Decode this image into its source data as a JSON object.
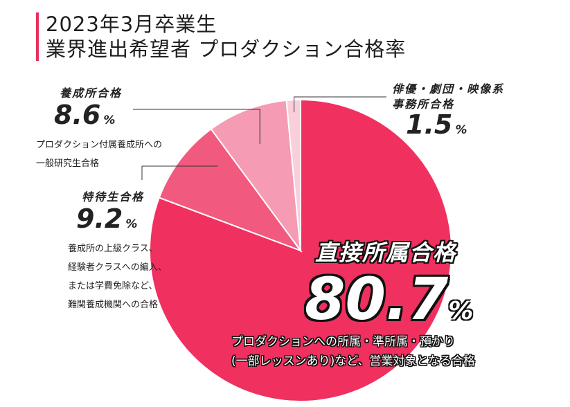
{
  "header": {
    "title_line1": "2023年3月卒業生",
    "title_line2": "業界進出希望者 プロダクション合格率",
    "accent_color": "#e8305f"
  },
  "chart_data": {
    "type": "pie",
    "slices": [
      {
        "key": "direct",
        "label": "直接所属合格",
        "value": 80.7,
        "value_text": "80.7",
        "unit": "%",
        "color": "#f0305f",
        "description": [
          "プロダクションへの所属・準所属・預かり",
          "(一部レッスンあり)など、営業対象となる合格"
        ]
      },
      {
        "key": "special",
        "label": "特待生合格",
        "value": 9.2,
        "value_text": "9.2",
        "unit": "%",
        "color": "#f2597f",
        "description": [
          "養成所の上級クラス、",
          "経験者クラスへの編入、",
          "または学費免除など、",
          "難関養成機関への合格"
        ]
      },
      {
        "key": "training",
        "label": "養成所合格",
        "value": 8.6,
        "value_text": "8.6",
        "unit": "%",
        "color": "#f59bb3",
        "description": [
          "プロダクション付属養成所への",
          "一般研究生合格"
        ]
      },
      {
        "key": "office",
        "label_lines": [
          "俳優・劇団・映像系",
          "事務所合格"
        ],
        "value": 1.5,
        "value_text": "1.5",
        "unit": "%",
        "color": "#f9cfdb",
        "description": []
      }
    ]
  }
}
